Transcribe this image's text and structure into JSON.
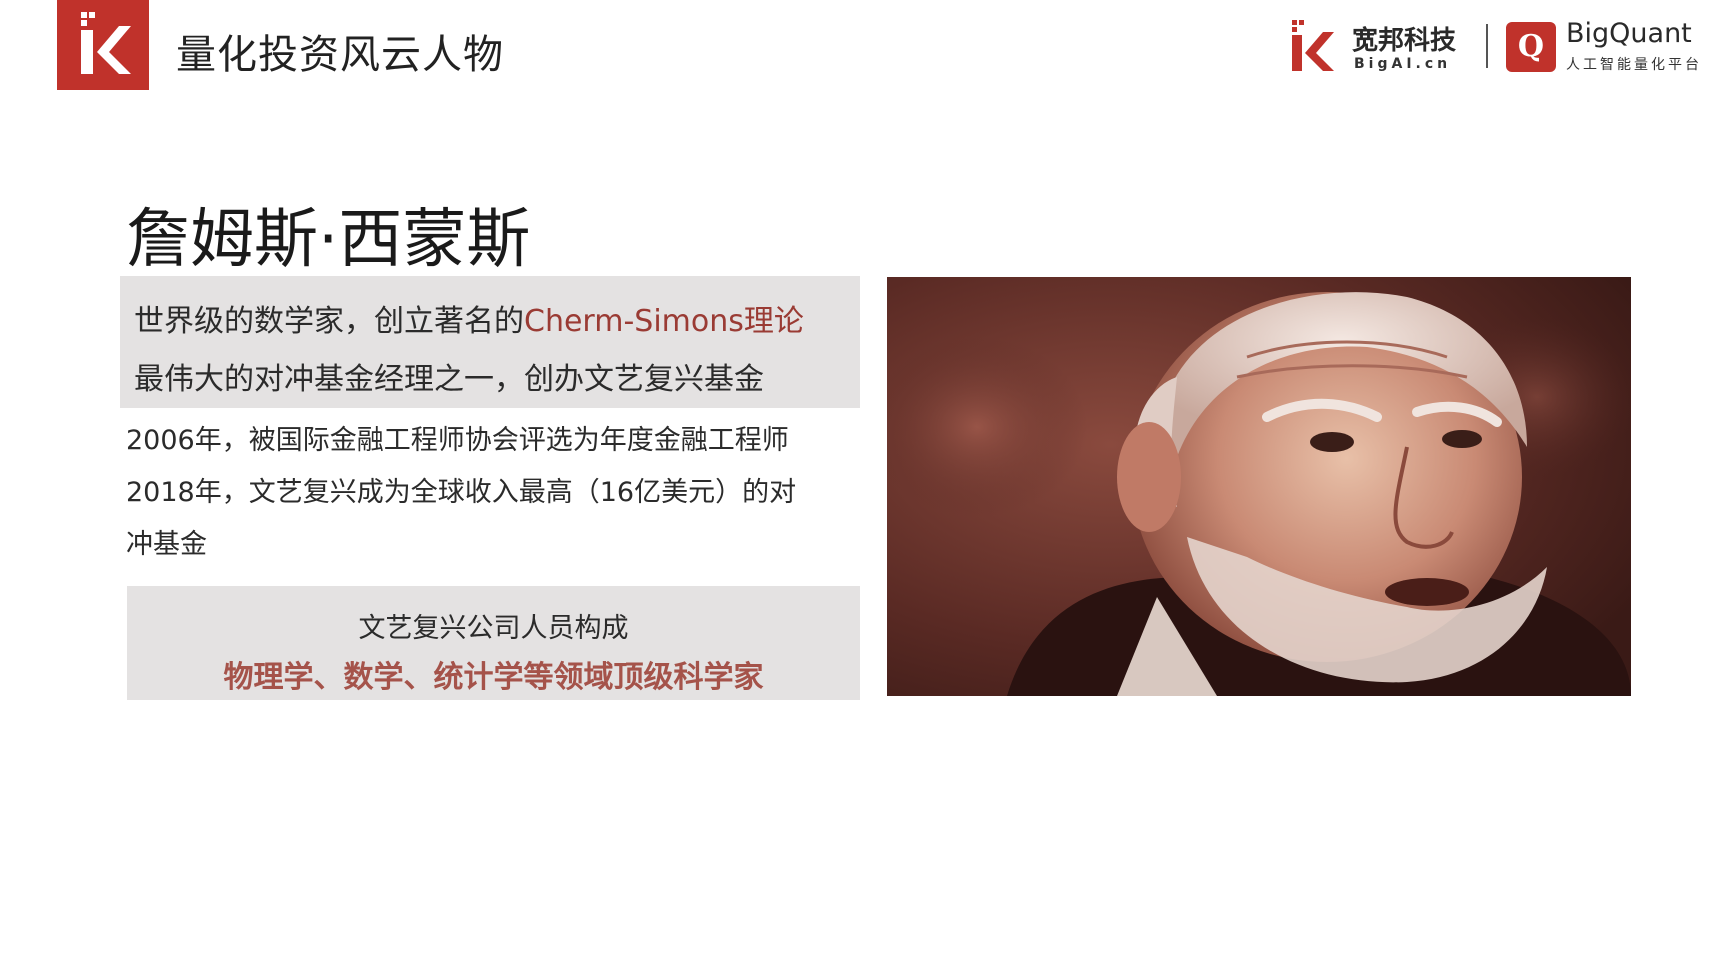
{
  "header": {
    "title": "量化投资风云人物"
  },
  "brand": {
    "company_name": "宽邦科技",
    "company_url": "BigAI.cn",
    "product_badge": "Q",
    "product_name": "BigQuant",
    "product_tagline": "人工智能量化平台"
  },
  "person": {
    "name": "詹姆斯·西蒙斯"
  },
  "intro": {
    "line1_prefix": "世界级的数学家，创立著名的",
    "line1_highlight": "Cherm-Simons理论",
    "line2": "最伟大的对冲基金经理之一，创办文艺复兴基金"
  },
  "facts": [
    "2006年，被国际金融工程师协会评选为年度金融工程师",
    "2018年，文艺复兴成为全球收入最高（16亿美元）的对",
    "冲基金"
  ],
  "staff": {
    "heading": "文艺复兴公司人员构成",
    "fields": "物理学、数学、统计学等领域顶级科学家"
  },
  "colors": {
    "brand_red": "#c0322b",
    "highlight_text": "#9a3b34",
    "box_gray": "#e4e2e2"
  },
  "icons": {
    "corner_logo": "k-logo-icon",
    "brand_logo": "k-logo-icon",
    "product_logo": "q-badge-icon"
  }
}
